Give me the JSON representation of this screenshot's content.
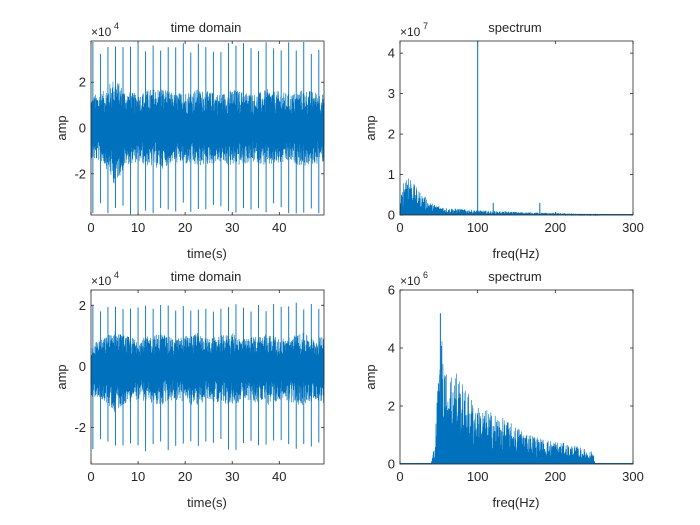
{
  "colors": {
    "series": "#0072BD",
    "axis": "#262626",
    "background": "#ffffff"
  },
  "chart_data": [
    {
      "id": "p1",
      "type": "line",
      "title": "time domain",
      "xlabel": "time(s)",
      "ylabel": "amp",
      "exponent_label": "×10^4",
      "xlim": [
        0,
        49.5
      ],
      "ylim": [
        -38000,
        38000
      ],
      "xticks": [
        0,
        10,
        20,
        30,
        40
      ],
      "xtick_labels": [
        "0",
        "10",
        "20",
        "30",
        "40"
      ],
      "yticks": [
        -20000,
        0,
        20000
      ],
      "ytick_labels": [
        "-2",
        "0",
        "2"
      ],
      "series": [
        {
          "envelope": {
            "x": [
              0,
              2.5,
              5,
              7.5,
              10,
              12.5,
              15,
              17.5,
              20,
              22.5,
              25,
              27.5,
              30,
              32.5,
              35,
              37.5,
              40,
              42.5,
              45,
              47.5,
              49.5
            ],
            "y_max": [
              14000,
              16000,
              22000,
              16000,
              15000,
              17000,
              18000,
              15000,
              16000,
              17000,
              16000,
              15000,
              17000,
              16000,
              15000,
              17000,
              16000,
              15000,
              17000,
              16000,
              15000
            ],
            "y_min": [
              -14000,
              -15000,
              -25000,
              -16000,
              -15000,
              -17000,
              -18000,
              -15000,
              -16000,
              -17000,
              -16000,
              -15000,
              -17000,
              -16000,
              -15000,
              -17000,
              -16000,
              -15000,
              -17000,
              -16000,
              -15000
            ]
          },
          "spike_period_s": 1.6,
          "spike_peak": [
            38000,
            -38000
          ]
        }
      ]
    },
    {
      "id": "p2",
      "type": "line",
      "title": "spectrum",
      "xlabel": "freq(Hz)",
      "ylabel": "amp",
      "exponent_label": "×10^7",
      "xlim": [
        0,
        300
      ],
      "ylim": [
        0,
        43000000
      ],
      "xticks": [
        0,
        100,
        200,
        300
      ],
      "xtick_labels": [
        "0",
        "100",
        "200",
        "300"
      ],
      "yticks": [
        0,
        10000000,
        20000000,
        30000000,
        40000000
      ],
      "ytick_labels": [
        "0",
        "1",
        "2",
        "3",
        "4"
      ],
      "series": [
        {
          "envelope": {
            "x": [
              0,
              5,
              10,
              15,
              20,
              30,
              40,
              60,
              80,
              100,
              120,
              150,
              180,
              200,
              230,
              250,
              260,
              300
            ],
            "y": [
              3000000,
              9000000,
              12000000,
              9000000,
              7000000,
              5000000,
              3000000,
              1800000,
              1500000,
              1200000,
              1000000,
              800000,
              600000,
              500000,
              300000,
              200000,
              0,
              0
            ]
          },
          "peaks": [
            {
              "x": 100,
              "y": 43000000
            },
            {
              "x": 120,
              "y": 3000000
            },
            {
              "x": 180,
              "y": 3000000
            }
          ]
        }
      ]
    },
    {
      "id": "p3",
      "type": "line",
      "title": "time domain",
      "xlabel": "time(s)",
      "ylabel": "amp",
      "exponent_label": "×10^4",
      "xlim": [
        0,
        49.5
      ],
      "ylim": [
        -32000,
        25000
      ],
      "xticks": [
        0,
        10,
        20,
        30,
        40
      ],
      "xtick_labels": [
        "0",
        "10",
        "20",
        "30",
        "40"
      ],
      "yticks": [
        -20000,
        0,
        20000
      ],
      "ytick_labels": [
        "-2",
        "0",
        "2"
      ],
      "series": [
        {
          "envelope": {
            "x": [
              0,
              2.5,
              5,
              7.5,
              10,
              12.5,
              15,
              17.5,
              20,
              22.5,
              25,
              27.5,
              30,
              32.5,
              35,
              37.5,
              40,
              42.5,
              45,
              47.5,
              49.5
            ],
            "y_max": [
              8000,
              9000,
              12000,
              10000,
              9000,
              10000,
              11000,
              9000,
              10000,
              11000,
              9000,
              10000,
              11000,
              9000,
              10000,
              11000,
              9000,
              10000,
              11000,
              9000,
              10000
            ],
            "y_min": [
              -10000,
              -11000,
              -15000,
              -12000,
              -11000,
              -12000,
              -13000,
              -11000,
              -12000,
              -13000,
              -11000,
              -12000,
              -13000,
              -11000,
              -12000,
              -13000,
              -11000,
              -12000,
              -13000,
              -11000,
              -12000
            ]
          },
          "spike_period_s": 1.6,
          "spike_peak": [
            21000,
            -28000
          ]
        }
      ]
    },
    {
      "id": "p4",
      "type": "line",
      "title": "spectrum",
      "xlabel": "freq(Hz)",
      "ylabel": "amp",
      "exponent_label": "×10^6",
      "xlim": [
        0,
        300
      ],
      "ylim": [
        0,
        6000000
      ],
      "xticks": [
        0,
        100,
        200,
        300
      ],
      "xtick_labels": [
        "0",
        "100",
        "200",
        "300"
      ],
      "yticks": [
        0,
        2000000,
        4000000,
        6000000
      ],
      "ytick_labels": [
        "0",
        "2",
        "4",
        "6"
      ],
      "series": [
        {
          "envelope": {
            "x": [
              0,
              40,
              45,
              50,
              55,
              60,
              70,
              80,
              90,
              100,
              120,
              150,
              180,
              200,
              230,
              250,
              251,
              300
            ],
            "y": [
              0,
              0,
              800000,
              3500000,
              5000000,
              3000000,
              3500000,
              2800000,
              2400000,
              2000000,
              1800000,
              1300000,
              900000,
              800000,
              600000,
              400000,
              0,
              0
            ]
          },
          "peaks": [
            {
              "x": 52,
              "y": 5200000
            },
            {
              "x": 100,
              "y": 1700000
            },
            {
              "x": 120,
              "y": 1300000
            }
          ]
        }
      ]
    }
  ]
}
